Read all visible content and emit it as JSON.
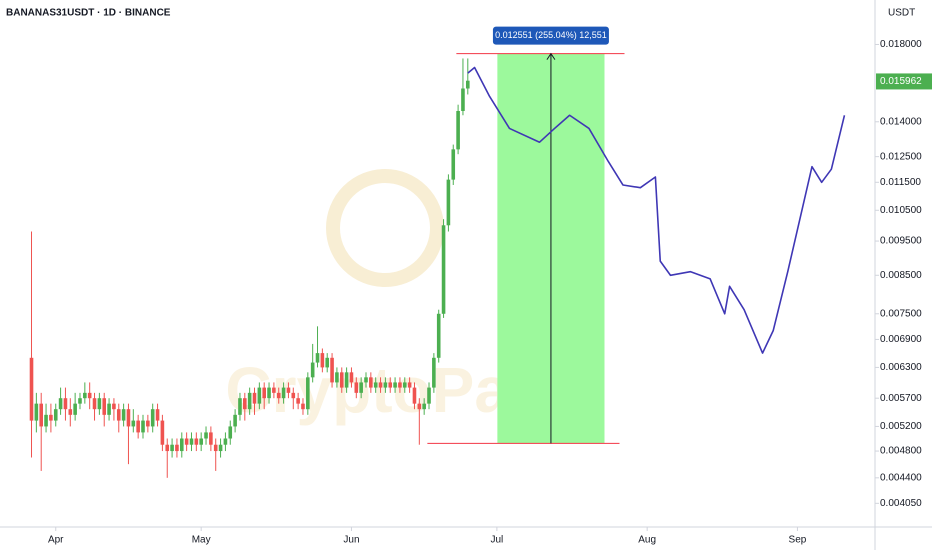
{
  "chart_data": {
    "type": "candlestick",
    "title": "BANANAS31USDT · 1D · BINANCE",
    "y_unit": "USDT",
    "watermark": "CryptoPatel",
    "log_scale": true,
    "grid": false,
    "up_color": "#4caf50",
    "down_color": "#ef5350",
    "xlim": [
      -11.5,
      169
    ],
    "xticks": [
      {
        "value": 0,
        "label": "Apr"
      },
      {
        "value": 30,
        "label": "May"
      },
      {
        "value": 61,
        "label": "Jun"
      },
      {
        "value": 91,
        "label": "Jul"
      },
      {
        "value": 122,
        "label": "Aug"
      },
      {
        "value": 153,
        "label": "Sep"
      }
    ],
    "ylim": [
      0.00375,
      0.0208
    ],
    "yticks": [
      {
        "value": 0.018,
        "label": "0.018000"
      },
      {
        "value": 0.014,
        "label": "0.014000"
      },
      {
        "value": 0.0125,
        "label": "0.012500"
      },
      {
        "value": 0.0115,
        "label": "0.011500"
      },
      {
        "value": 0.0105,
        "label": "0.010500"
      },
      {
        "value": 0.0095,
        "label": "0.009500"
      },
      {
        "value": 0.0085,
        "label": "0.008500"
      },
      {
        "value": 0.0075,
        "label": "0.007500"
      },
      {
        "value": 0.0069,
        "label": "0.006900"
      },
      {
        "value": 0.0063,
        "label": "0.006300"
      },
      {
        "value": 0.0057,
        "label": "0.005700"
      },
      {
        "value": 0.0052,
        "label": "0.005200"
      },
      {
        "value": 0.0048,
        "label": "0.004800"
      },
      {
        "value": 0.0044,
        "label": "0.004400"
      },
      {
        "value": 0.00405,
        "label": "0.004050"
      }
    ],
    "last_price": 0.015962,
    "x": [
      -5,
      -4,
      -3,
      -2,
      -1,
      0,
      1,
      2,
      3,
      4,
      5,
      6,
      7,
      8,
      9,
      10,
      11,
      12,
      13,
      14,
      15,
      16,
      17,
      18,
      19,
      20,
      21,
      22,
      23,
      24,
      25,
      26,
      27,
      28,
      29,
      30,
      31,
      32,
      33,
      34,
      35,
      36,
      37,
      38,
      39,
      40,
      41,
      42,
      43,
      44,
      45,
      46,
      47,
      48,
      49,
      50,
      51,
      52,
      53,
      54,
      55,
      56,
      57,
      58,
      59,
      60,
      61,
      62,
      63,
      64,
      65,
      66,
      67,
      68,
      69,
      70,
      71,
      72,
      73,
      74,
      75,
      76,
      77,
      78,
      79,
      80,
      81,
      82,
      83,
      84,
      85
    ],
    "candles": [
      [
        0.0065,
        0.0098,
        0.0047,
        0.0053
      ],
      [
        0.0053,
        0.0058,
        0.0051,
        0.0056
      ],
      [
        0.0056,
        0.0058,
        0.0045,
        0.0052
      ],
      [
        0.0052,
        0.0056,
        0.0051,
        0.0054
      ],
      [
        0.0054,
        0.0056,
        0.0051,
        0.0053
      ],
      [
        0.0053,
        0.0056,
        0.0052,
        0.0055
      ],
      [
        0.0055,
        0.0059,
        0.0054,
        0.0057
      ],
      [
        0.0057,
        0.0059,
        0.0053,
        0.0055
      ],
      [
        0.0055,
        0.0057,
        0.0052,
        0.0054
      ],
      [
        0.0054,
        0.0058,
        0.0053,
        0.0056
      ],
      [
        0.0056,
        0.0058,
        0.0055,
        0.0057
      ],
      [
        0.0057,
        0.006,
        0.0056,
        0.0058
      ],
      [
        0.0058,
        0.006,
        0.0055,
        0.0057
      ],
      [
        0.0057,
        0.0058,
        0.0053,
        0.0055
      ],
      [
        0.0055,
        0.0058,
        0.0054,
        0.0057
      ],
      [
        0.0057,
        0.0058,
        0.0052,
        0.0054
      ],
      [
        0.0054,
        0.0057,
        0.0053,
        0.0056
      ],
      [
        0.0056,
        0.0057,
        0.0053,
        0.0055
      ],
      [
        0.0055,
        0.0056,
        0.0051,
        0.0053
      ],
      [
        0.0053,
        0.0056,
        0.0052,
        0.0055
      ],
      [
        0.0055,
        0.0056,
        0.0046,
        0.0052
      ],
      [
        0.0052,
        0.0055,
        0.0051,
        0.0053
      ],
      [
        0.0053,
        0.0054,
        0.005,
        0.0051
      ],
      [
        0.0051,
        0.0054,
        0.005,
        0.0053
      ],
      [
        0.0053,
        0.0054,
        0.0051,
        0.0052
      ],
      [
        0.0052,
        0.0056,
        0.0051,
        0.0055
      ],
      [
        0.0055,
        0.0056,
        0.0052,
        0.0053
      ],
      [
        0.0053,
        0.0054,
        0.0048,
        0.0049
      ],
      [
        0.0049,
        0.005,
        0.0044,
        0.0048
      ],
      [
        0.0048,
        0.005,
        0.0047,
        0.0049
      ],
      [
        0.0049,
        0.005,
        0.0047,
        0.0048
      ],
      [
        0.0048,
        0.0051,
        0.0047,
        0.005
      ],
      [
        0.005,
        0.0051,
        0.0048,
        0.0049
      ],
      [
        0.0049,
        0.0051,
        0.0048,
        0.005
      ],
      [
        0.005,
        0.0051,
        0.0048,
        0.0049
      ],
      [
        0.0049,
        0.0051,
        0.0048,
        0.005
      ],
      [
        0.005,
        0.0052,
        0.0049,
        0.0051
      ],
      [
        0.0051,
        0.0052,
        0.0048,
        0.0049
      ],
      [
        0.0049,
        0.005,
        0.0045,
        0.0048
      ],
      [
        0.0048,
        0.005,
        0.0047,
        0.0049
      ],
      [
        0.0049,
        0.0051,
        0.0048,
        0.005
      ],
      [
        0.005,
        0.0053,
        0.0049,
        0.0052
      ],
      [
        0.0052,
        0.0055,
        0.0051,
        0.0054
      ],
      [
        0.0054,
        0.0058,
        0.0053,
        0.0057
      ],
      [
        0.0057,
        0.0058,
        0.0053,
        0.0055
      ],
      [
        0.0055,
        0.0059,
        0.0054,
        0.0058
      ],
      [
        0.0058,
        0.0059,
        0.0054,
        0.0056
      ],
      [
        0.0056,
        0.006,
        0.0055,
        0.0059
      ],
      [
        0.0059,
        0.006,
        0.0055,
        0.0057
      ],
      [
        0.0057,
        0.006,
        0.0056,
        0.0059
      ],
      [
        0.0059,
        0.006,
        0.0057,
        0.0058
      ],
      [
        0.0058,
        0.0059,
        0.0056,
        0.0057
      ],
      [
        0.0057,
        0.006,
        0.0056,
        0.0059
      ],
      [
        0.0059,
        0.006,
        0.0057,
        0.0058
      ],
      [
        0.0058,
        0.0059,
        0.0055,
        0.0057
      ],
      [
        0.0057,
        0.0058,
        0.0055,
        0.0056
      ],
      [
        0.0056,
        0.0057,
        0.0054,
        0.0055
      ],
      [
        0.0055,
        0.0062,
        0.0054,
        0.0061
      ],
      [
        0.0061,
        0.0068,
        0.006,
        0.0064
      ],
      [
        0.0064,
        0.0072,
        0.0063,
        0.0066
      ],
      [
        0.0066,
        0.0067,
        0.0062,
        0.0063
      ],
      [
        0.0063,
        0.0066,
        0.0062,
        0.0065
      ],
      [
        0.0065,
        0.0066,
        0.0059,
        0.006
      ],
      [
        0.006,
        0.0063,
        0.0059,
        0.0062
      ],
      [
        0.0062,
        0.0063,
        0.0058,
        0.0059
      ],
      [
        0.0059,
        0.0063,
        0.0058,
        0.0062
      ],
      [
        0.0062,
        0.0063,
        0.0059,
        0.006
      ],
      [
        0.006,
        0.0061,
        0.0057,
        0.0058
      ],
      [
        0.0058,
        0.0061,
        0.0057,
        0.006
      ],
      [
        0.006,
        0.0062,
        0.0059,
        0.0061
      ],
      [
        0.0061,
        0.0062,
        0.0058,
        0.0059
      ],
      [
        0.0059,
        0.0061,
        0.0058,
        0.006
      ],
      [
        0.006,
        0.0061,
        0.0058,
        0.0059
      ],
      [
        0.0059,
        0.0061,
        0.0058,
        0.006
      ],
      [
        0.006,
        0.0061,
        0.0058,
        0.0059
      ],
      [
        0.0059,
        0.0061,
        0.0058,
        0.006
      ],
      [
        0.006,
        0.0061,
        0.0058,
        0.0059
      ],
      [
        0.0059,
        0.0061,
        0.0058,
        0.006
      ],
      [
        0.006,
        0.0061,
        0.0058,
        0.0059
      ],
      [
        0.0059,
        0.006,
        0.0055,
        0.0056
      ],
      [
        0.0056,
        0.0057,
        0.0049,
        0.0055
      ],
      [
        0.0055,
        0.0057,
        0.0054,
        0.0056
      ],
      [
        0.0056,
        0.006,
        0.0055,
        0.0059
      ],
      [
        0.0059,
        0.0066,
        0.0058,
        0.0065
      ],
      [
        0.0065,
        0.0076,
        0.0064,
        0.0075
      ],
      [
        0.0075,
        0.0102,
        0.0074,
        0.01
      ],
      [
        0.01,
        0.0118,
        0.0098,
        0.0116
      ],
      [
        0.0116,
        0.013,
        0.0114,
        0.0128
      ],
      [
        0.0128,
        0.0148,
        0.0126,
        0.0145
      ],
      [
        0.0145,
        0.0172,
        0.0143,
        0.0156
      ],
      [
        0.0156,
        0.0172,
        0.0153,
        0.016
      ]
    ],
    "projection": {
      "color": "#3f37b5",
      "x": [
        85,
        86.4,
        89.5,
        93.6,
        99.8,
        102.9,
        106,
        110,
        114,
        117,
        120.6,
        123.7,
        124.7,
        126.8,
        130.9,
        135,
        138,
        139,
        142,
        145.8,
        148,
        151,
        156,
        158,
        160,
        162.7
      ],
      "values": [
        0.0164,
        0.0167,
        0.0152,
        0.0137,
        0.0131,
        0.0137,
        0.0143,
        0.0137,
        0.0123,
        0.0114,
        0.0113,
        0.0117,
        0.0089,
        0.0085,
        0.0086,
        0.0084,
        0.0075,
        0.0082,
        0.0076,
        0.0066,
        0.0071,
        0.0086,
        0.0121,
        0.0115,
        0.012,
        0.0143
      ]
    },
    "measure": {
      "x_from": 91.1,
      "x_to": 113.2,
      "from": 0.004921,
      "to": 0.017472,
      "label": "0.012551 (255.04%) 12,551",
      "fill": "#9cf99c",
      "line_color": "#f23645"
    }
  }
}
